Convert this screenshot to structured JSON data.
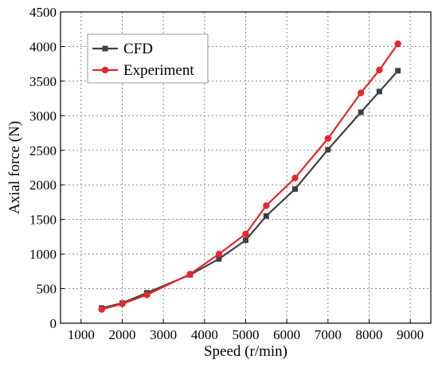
{
  "chart_data": {
    "type": "line",
    "title": "",
    "xlabel": "Speed (r/min)",
    "ylabel": "Axial force (N)",
    "xlim": [
      500,
      9500
    ],
    "ylim": [
      0,
      4500
    ],
    "xticks": [
      1000,
      2000,
      3000,
      4000,
      5000,
      6000,
      7000,
      8000,
      9000
    ],
    "yticks": [
      0,
      500,
      1000,
      1500,
      2000,
      2500,
      3000,
      3500,
      4000,
      4500
    ],
    "grid": true,
    "legend_position": "top-left",
    "series": [
      {
        "name": "CFD",
        "color": "#404040",
        "marker": "square",
        "x": [
          1500,
          2000,
          2600,
          3650,
          4350,
          5000,
          5500,
          6200,
          7000,
          7800,
          8250,
          8700
        ],
        "y": [
          220,
          290,
          440,
          700,
          930,
          1200,
          1550,
          1940,
          2510,
          3050,
          3350,
          3650
        ]
      },
      {
        "name": "Experiment",
        "color": "#e8262b",
        "marker": "circle",
        "x": [
          1500,
          2000,
          2600,
          3650,
          4350,
          5000,
          5500,
          6200,
          7000,
          7800,
          8250,
          8700
        ],
        "y": [
          200,
          280,
          410,
          710,
          1000,
          1290,
          1700,
          2100,
          2670,
          3330,
          3660,
          4040
        ]
      }
    ]
  }
}
